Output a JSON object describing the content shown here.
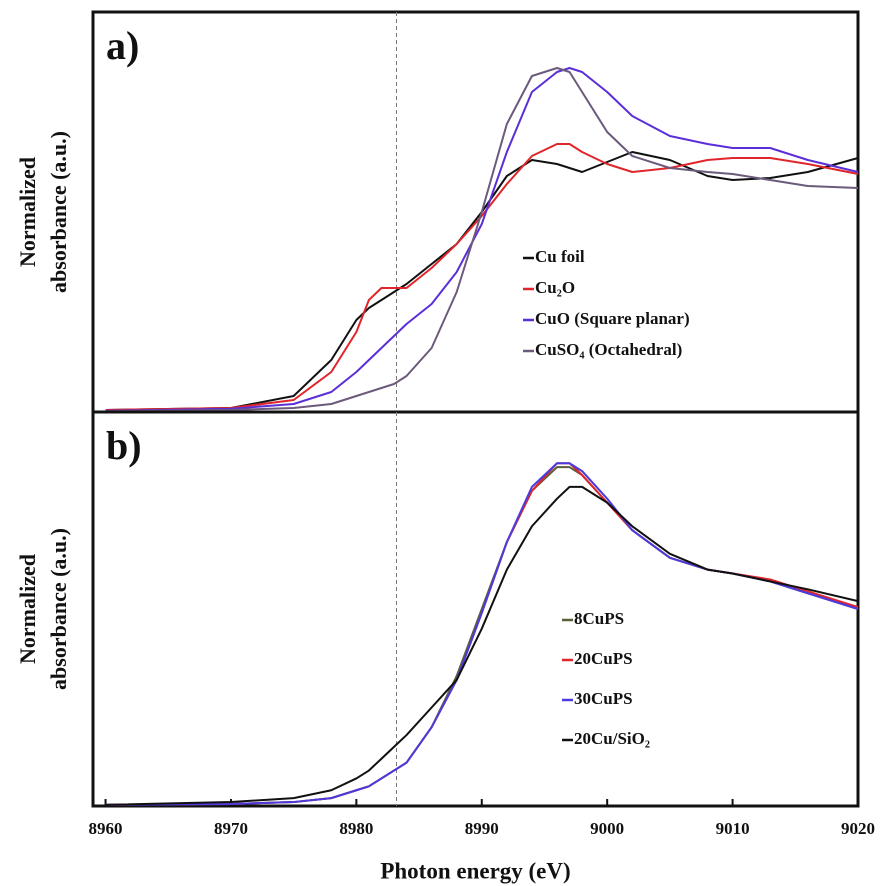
{
  "chart_data": [
    {
      "type": "line",
      "panel_label": "a)",
      "ylabel": [
        "Normalized",
        "absorbance  (a.u.)"
      ],
      "xlim": [
        8959,
        9020
      ],
      "ylim": [
        0,
        1
      ],
      "vline_x": 8983.2,
      "x": [
        8960,
        8970,
        8975,
        8978,
        8980,
        8981,
        8982,
        8983,
        8984,
        8986,
        8988,
        8990,
        8992,
        8994,
        8996,
        8997,
        8998,
        9000,
        9002,
        9005,
        9008,
        9010,
        9013,
        9016,
        9020
      ],
      "series": [
        {
          "name": "Cu foil",
          "color": "#111111",
          "values": [
            0.005,
            0.01,
            0.04,
            0.13,
            0.23,
            0.26,
            0.28,
            0.3,
            0.32,
            0.37,
            0.42,
            0.5,
            0.59,
            0.63,
            0.62,
            0.61,
            0.6,
            0.625,
            0.65,
            0.63,
            0.59,
            0.58,
            0.585,
            0.6,
            0.635
          ]
        },
        {
          "name": "Cu₂O",
          "color": "#e0262b",
          "values": [
            0.005,
            0.01,
            0.03,
            0.1,
            0.2,
            0.28,
            0.31,
            0.31,
            0.31,
            0.36,
            0.42,
            0.49,
            0.57,
            0.64,
            0.67,
            0.67,
            0.65,
            0.62,
            0.6,
            0.61,
            0.63,
            0.635,
            0.635,
            0.62,
            0.595
          ]
        },
        {
          "name": "CuO (Square planar)",
          "color": "#5b2fd8",
          "values": [
            0.003,
            0.008,
            0.02,
            0.05,
            0.1,
            0.13,
            0.16,
            0.19,
            0.22,
            0.27,
            0.35,
            0.47,
            0.65,
            0.8,
            0.85,
            0.86,
            0.85,
            0.8,
            0.74,
            0.69,
            0.67,
            0.66,
            0.66,
            0.63,
            0.6
          ]
        },
        {
          "name": "CuSO₄ (Octahedral)",
          "color": "#6b5a7b",
          "values": [
            0.002,
            0.005,
            0.01,
            0.02,
            0.04,
            0.05,
            0.06,
            0.07,
            0.09,
            0.16,
            0.3,
            0.5,
            0.72,
            0.84,
            0.86,
            0.85,
            0.8,
            0.7,
            0.64,
            0.61,
            0.6,
            0.595,
            0.58,
            0.565,
            0.56
          ]
        }
      ]
    },
    {
      "type": "line",
      "panel_label": "b)",
      "ylabel": [
        "Normalized",
        "absorbance  (a.u.)"
      ],
      "xlabel": "Photon energy (eV)",
      "xlim": [
        8959,
        9020
      ],
      "ylim": [
        0,
        1
      ],
      "vline_x": 8983.2,
      "xticks": [
        8960,
        8970,
        8980,
        8990,
        9000,
        9010,
        9020
      ],
      "x": [
        8960,
        8970,
        8975,
        8978,
        8980,
        8981,
        8982,
        8983,
        8984,
        8986,
        8988,
        8990,
        8992,
        8994,
        8996,
        8997,
        8998,
        9000,
        9002,
        9005,
        9008,
        9010,
        9013,
        9016,
        9020
      ],
      "series": [
        {
          "name": "8CuPS",
          "color": "#5b5e3a",
          "values": [
            0.003,
            0.005,
            0.01,
            0.02,
            0.04,
            0.05,
            0.07,
            0.09,
            0.11,
            0.2,
            0.33,
            0.5,
            0.67,
            0.8,
            0.86,
            0.86,
            0.84,
            0.77,
            0.7,
            0.63,
            0.6,
            0.59,
            0.57,
            0.54,
            0.5
          ]
        },
        {
          "name": "20CuPS",
          "color": "#e0262b",
          "values": [
            0.003,
            0.005,
            0.01,
            0.02,
            0.04,
            0.05,
            0.07,
            0.09,
            0.11,
            0.2,
            0.32,
            0.49,
            0.67,
            0.8,
            0.87,
            0.87,
            0.84,
            0.77,
            0.7,
            0.63,
            0.6,
            0.59,
            0.575,
            0.545,
            0.505
          ]
        },
        {
          "name": "30CuPS",
          "color": "#4a3ae0",
          "values": [
            0.003,
            0.005,
            0.01,
            0.02,
            0.04,
            0.05,
            0.07,
            0.09,
            0.11,
            0.2,
            0.32,
            0.49,
            0.67,
            0.81,
            0.87,
            0.87,
            0.85,
            0.78,
            0.7,
            0.63,
            0.6,
            0.59,
            0.57,
            0.54,
            0.5
          ]
        },
        {
          "name": "20Cu/SiO₂",
          "color": "#111111",
          "values": [
            0.003,
            0.01,
            0.02,
            0.04,
            0.07,
            0.09,
            0.12,
            0.15,
            0.18,
            0.25,
            0.32,
            0.45,
            0.6,
            0.71,
            0.78,
            0.81,
            0.81,
            0.77,
            0.71,
            0.64,
            0.6,
            0.59,
            0.57,
            0.55,
            0.52
          ]
        }
      ]
    }
  ]
}
